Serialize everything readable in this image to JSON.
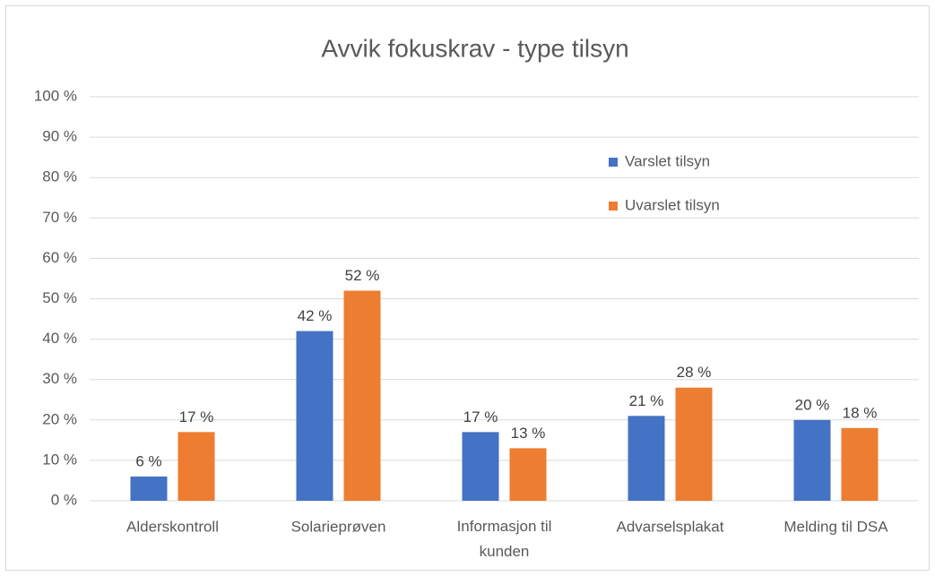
{
  "chart_data": {
    "type": "bar",
    "title": "Avvik fokuskrav - type tilsyn",
    "categories": [
      "Alderskontroll",
      "Solarieprøven",
      "Informasjon til kunden",
      "Advarselsplakat",
      "Melding til DSA"
    ],
    "series": [
      {
        "name": "Varslet tilsyn",
        "color": "#4472c4",
        "values": [
          6,
          42,
          17,
          21,
          20
        ],
        "value_labels": [
          "6 %",
          "42 %",
          "17 %",
          "21 %",
          "20 %"
        ]
      },
      {
        "name": "Uvarslet tilsyn",
        "color": "#ed7d31",
        "values": [
          17,
          52,
          13,
          28,
          18
        ],
        "value_labels": [
          "17 %",
          "52 %",
          "13 %",
          "28 %",
          "18 %"
        ]
      }
    ],
    "ylim": [
      0,
      100
    ],
    "yticks": [
      {
        "value": 0,
        "label": "0 %"
      },
      {
        "value": 10,
        "label": "10 %"
      },
      {
        "value": 20,
        "label": "20 %"
      },
      {
        "value": 30,
        "label": "30 %"
      },
      {
        "value": 40,
        "label": "40 %"
      },
      {
        "value": 50,
        "label": "50 %"
      },
      {
        "value": 60,
        "label": "60 %"
      },
      {
        "value": 70,
        "label": "70 %"
      },
      {
        "value": 80,
        "label": "80 %"
      },
      {
        "value": 90,
        "label": "90 %"
      },
      {
        "value": 100,
        "label": "100 %"
      }
    ],
    "grid": true,
    "legend": "upper right"
  }
}
